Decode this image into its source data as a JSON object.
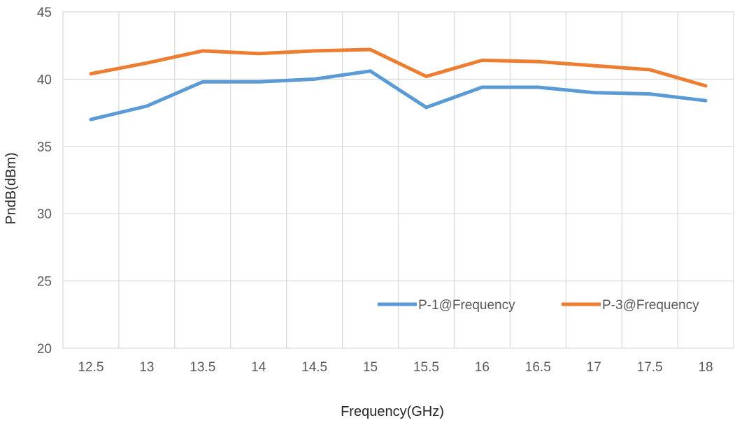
{
  "chart_data": {
    "type": "line",
    "title": "",
    "xlabel": "Frequency(GHz)",
    "ylabel": "PndB(dBm)",
    "categories": [
      "12.5",
      "13",
      "13.5",
      "14",
      "14.5",
      "15",
      "15.5",
      "16",
      "16.5",
      "17",
      "17.5",
      "18"
    ],
    "ylim": [
      20,
      45
    ],
    "yticks": [
      20,
      25,
      30,
      35,
      40,
      45
    ],
    "grid": true,
    "legend_position": "bottom-right",
    "series": [
      {
        "name": "P-1@Frequency",
        "color": "#5b9bd5",
        "values": [
          37.0,
          38.0,
          39.8,
          39.8,
          40.0,
          40.6,
          37.9,
          39.4,
          39.4,
          39.0,
          38.9,
          38.4
        ]
      },
      {
        "name": "P-3@Frequency",
        "color": "#ed7d31",
        "values": [
          40.4,
          41.2,
          42.1,
          41.9,
          42.1,
          42.2,
          40.2,
          41.4,
          41.3,
          41.0,
          40.7,
          39.5
        ]
      }
    ]
  }
}
